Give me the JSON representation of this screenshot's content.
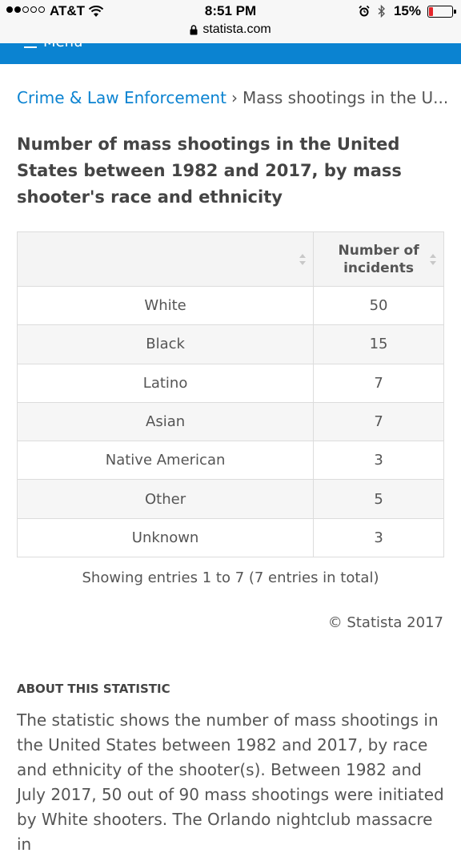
{
  "status_bar": {
    "carrier": "AT&T",
    "time": "8:51 PM",
    "url": "statista.com",
    "battery": "15%",
    "signal_bars": 2,
    "signal_total": 5,
    "battery_level": 0.15,
    "battery_color": "#e5252a"
  },
  "menu": {
    "label": "Menu",
    "color": "#0b83d1"
  },
  "breadcrumb": {
    "parent": "Crime & Law Enforcement",
    "separator": "›",
    "current": "Mass shootings in the U...."
  },
  "title": "Number of mass shootings in the United States between 1982 and 2017, by mass shooter's race and ethnicity",
  "table": {
    "headers": [
      "",
      "Number of incidents"
    ],
    "rows": [
      {
        "label": "White",
        "value": "50"
      },
      {
        "label": "Black",
        "value": "15"
      },
      {
        "label": "Latino",
        "value": "7"
      },
      {
        "label": "Asian",
        "value": "7"
      },
      {
        "label": "Native American",
        "value": "3"
      },
      {
        "label": "Other",
        "value": "5"
      },
      {
        "label": "Unknown",
        "value": "3"
      }
    ]
  },
  "entries_info": "Showing entries 1 to 7 (7 entries in total)",
  "copyright": "© Statista 2017",
  "about": {
    "heading": "ABOUT THIS STATISTIC",
    "text": "The statistic shows the number of mass shootings in the United States between 1982 and 2017, by race and ethnicity of the shooter(s). Between 1982 and July 2017, 50 out of 90 mass shootings were initiated by White shooters. The Orlando nightclub massacre in"
  }
}
